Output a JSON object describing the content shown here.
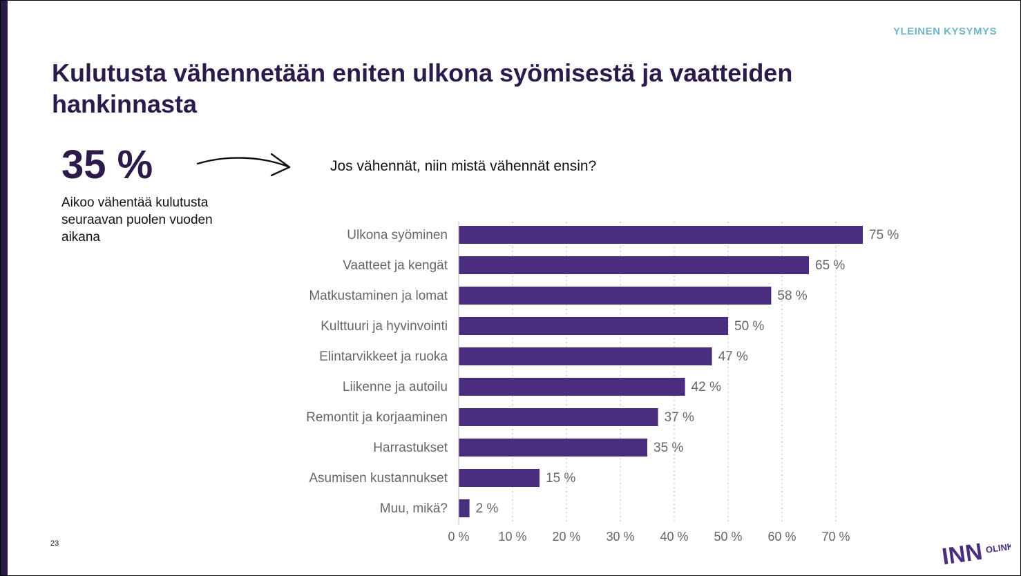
{
  "header": {
    "section_tag": "YLEINEN KYSYMYS"
  },
  "title": "Kulutusta vähennetään eniten ulkona syömisestä ja vaatteiden hankinnasta",
  "highlight": {
    "value": "35 %",
    "caption": "Aikoo vähentää kulutusta seuraavan puolen vuoden aikana"
  },
  "question": "Jos vähennät, niin mistä vähennät ensin?",
  "page_number": "23",
  "logo": {
    "text_big": "INN",
    "text_small": "OLINK"
  },
  "colors": {
    "bar": "#4b2d7f",
    "title": "#2b1a4a",
    "accent": "#6fb7c8",
    "label": "#666666"
  },
  "chart_data": {
    "type": "bar",
    "orientation": "horizontal",
    "title": "Jos vähennät, niin mistä vähennät ensin?",
    "categories": [
      "Ulkona syöminen",
      "Vaatteet ja kengät",
      "Matkustaminen ja lomat",
      "Kulttuuri ja hyvinvointi",
      "Elintarvikkeet ja ruoka",
      "Liikenne ja autoilu",
      "Remontit ja korjaaminen",
      "Harrastukset",
      "Asumisen kustannukset",
      "Muu, mikä?"
    ],
    "values": [
      75,
      65,
      58,
      50,
      47,
      42,
      37,
      35,
      15,
      2
    ],
    "value_labels": [
      "75 %",
      "65 %",
      "58 %",
      "50 %",
      "47 %",
      "42 %",
      "37 %",
      "35 %",
      "15 %",
      "2 %"
    ],
    "xlim": [
      0,
      70
    ],
    "xticks": [
      0,
      10,
      20,
      30,
      40,
      50,
      60,
      70
    ],
    "xtick_labels": [
      "0 %",
      "10 %",
      "20 %",
      "30 %",
      "40 %",
      "50 %",
      "60 %",
      "70 %"
    ],
    "xlabel": "",
    "ylabel": "",
    "grid": "vertical dotted"
  }
}
